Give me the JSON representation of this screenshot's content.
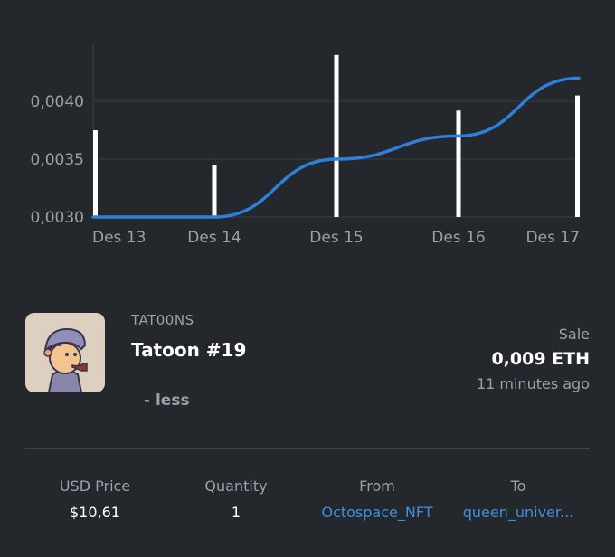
{
  "chart_data": {
    "type": "line",
    "x_labels": [
      "Des 13",
      "Des 14",
      "Des 15",
      "Des 16",
      "Des 17"
    ],
    "y_ticks": [
      "0,0030",
      "0,0035",
      "0,0040"
    ],
    "ylim": [
      0.003,
      0.0045
    ],
    "grid": true,
    "series": [
      {
        "type": "bar",
        "color": "#ffffff",
        "x": [
          "Des 13",
          "Des 14",
          "Des 15",
          "Des 16",
          "Des 17"
        ],
        "values": [
          0.00375,
          0.00345,
          0.0044,
          0.00392,
          0.00405
        ]
      },
      {
        "type": "line",
        "color": "#2f7fd8",
        "x": [
          "Des 13",
          "Des 14",
          "Des 15",
          "Des 16",
          "Des 17"
        ],
        "values": [
          0.003,
          0.003,
          0.0035,
          0.0037,
          0.0042
        ]
      }
    ]
  },
  "item": {
    "collection": "TAT00NS",
    "name": "Tatoon #19",
    "less_label": "- less",
    "event_type": "Sale",
    "price": "0,009 ETH",
    "time_ago": "11 minutes ago",
    "thumbnail_icon": "cartoon-avatar-icon"
  },
  "details": {
    "usd_price_label": "USD Price",
    "usd_price_value": "$10,61",
    "quantity_label": "Quantity",
    "quantity_value": "1",
    "from_label": "From",
    "from_value": "Octospace_NFT",
    "to_label": "To",
    "to_value": "queen_univer..."
  },
  "colors": {
    "background": "#24282d",
    "accent": "#2f7fd8",
    "link": "#3f8fe0",
    "muted_text": "#9aa1a8"
  }
}
